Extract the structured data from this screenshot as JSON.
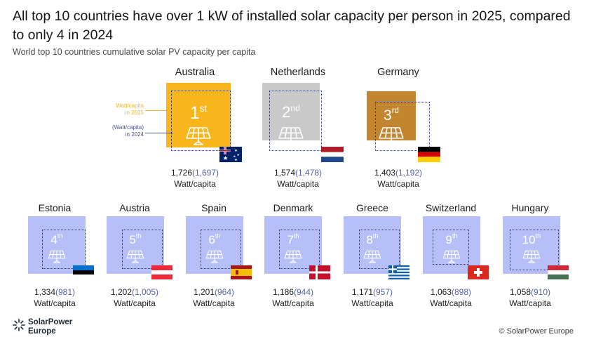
{
  "title": "All top 10 countries have over 1 kW of installed solar capacity per person in 2025, compared to only 4 in 2024",
  "subtitle": "World top 10 countries cumulative solar PV capacity per capita",
  "legend": {
    "label_2025_line1": "Watt/capita",
    "label_2025_line2": "in 2025",
    "label_2024_line1": "(Watt/capita)",
    "label_2024_line2": "in 2024"
  },
  "colors": {
    "australia": "#f9b51c",
    "netherlands": "#c9c9c9",
    "germany": "#c28630",
    "others": "#b7bff8",
    "inner_outline": "#2f3472",
    "value_2024": "#5c62a8"
  },
  "icon": "solar-panel-icon",
  "unit_label": "Watt/capita",
  "chart_data": {
    "type": "area",
    "title": "All top 10 countries have over 1 kW of installed solar capacity per person in 2025, compared to only 4 in 2024",
    "subtitle": "World top 10 countries cumulative solar PV capacity per capita",
    "unit": "Watt/capita",
    "series": [
      {
        "name": "Watt/capita in 2025",
        "values": [
          1726,
          1574,
          1403,
          1334,
          1202,
          1201,
          1186,
          1171,
          1063,
          1058
        ]
      },
      {
        "name": "(Watt/capita) in 2024",
        "values": [
          1697,
          1478,
          1192,
          981,
          1005,
          964,
          944,
          957,
          898,
          910
        ]
      }
    ],
    "categories": [
      "Australia",
      "Netherlands",
      "Germany",
      "Estonia",
      "Austria",
      "Spain",
      "Denmark",
      "Greece",
      "Switzerland",
      "Hungary"
    ],
    "countries": [
      {
        "name": "Australia",
        "rank": "1",
        "rank_suffix": "st",
        "v2025": 1726,
        "v2025_label": "1,726",
        "v2024": 1697,
        "v2024_label": "(1,697)",
        "flag": "australia-flag"
      },
      {
        "name": "Netherlands",
        "rank": "2",
        "rank_suffix": "nd",
        "v2025": 1574,
        "v2025_label": "1,574",
        "v2024": 1478,
        "v2024_label": "(1,478)",
        "flag": "netherlands-flag"
      },
      {
        "name": "Germany",
        "rank": "3",
        "rank_suffix": "rd",
        "v2025": 1403,
        "v2025_label": "1,403",
        "v2024": 1192,
        "v2024_label": "(1,192)",
        "flag": "germany-flag"
      },
      {
        "name": "Estonia",
        "rank": "4",
        "rank_suffix": "th",
        "v2025": 1334,
        "v2025_label": "1,334",
        "v2024": 981,
        "v2024_label": "(981)",
        "flag": "estonia-flag"
      },
      {
        "name": "Austria",
        "rank": "5",
        "rank_suffix": "th",
        "v2025": 1202,
        "v2025_label": "1,202",
        "v2024": 1005,
        "v2024_label": "(1,005)",
        "flag": "austria-flag"
      },
      {
        "name": "Spain",
        "rank": "6",
        "rank_suffix": "th",
        "v2025": 1201,
        "v2025_label": "1,201",
        "v2024": 964,
        "v2024_label": "(964)",
        "flag": "spain-flag"
      },
      {
        "name": "Denmark",
        "rank": "7",
        "rank_suffix": "th",
        "v2025": 1186,
        "v2025_label": "1,186",
        "v2024": 944,
        "v2024_label": "(944)",
        "flag": "denmark-flag"
      },
      {
        "name": "Greece",
        "rank": "8",
        "rank_suffix": "th",
        "v2025": 1171,
        "v2025_label": "1,171",
        "v2024": 957,
        "v2024_label": "(957)",
        "flag": "greece-flag"
      },
      {
        "name": "Switzerland",
        "rank": "9",
        "rank_suffix": "th",
        "v2025": 1063,
        "v2025_label": "1,063",
        "v2024": 898,
        "v2024_label": "(898)",
        "flag": "switzerland-flag"
      },
      {
        "name": "Hungary",
        "rank": "10",
        "rank_suffix": "th",
        "v2025": 1058,
        "v2025_label": "1,058",
        "v2024": 910,
        "v2024_label": "(910)",
        "flag": "hungary-flag"
      }
    ]
  },
  "footer": {
    "logo_line1": "SolarPower",
    "logo_line2": "Europe",
    "copyright": "© SolarPower Europe"
  }
}
